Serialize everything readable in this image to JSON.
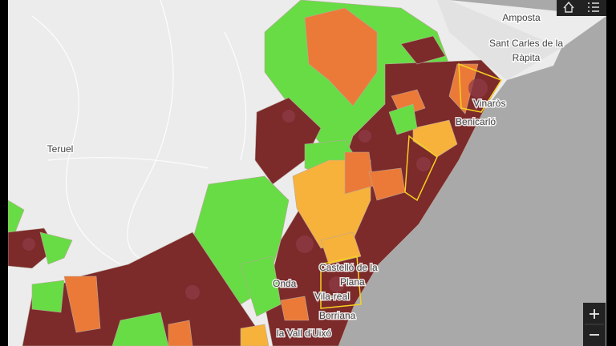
{
  "map": {
    "labels": [
      {
        "text": "Amposta"
      },
      {
        "text": "Sant Carles de la"
      },
      {
        "text": "Ràpita"
      },
      {
        "text": "Teruel"
      },
      {
        "text": "Vinaròs"
      },
      {
        "text": "Benicarló"
      },
      {
        "text": "Castelló de la"
      },
      {
        "text": "Plana"
      },
      {
        "text": "Onda"
      },
      {
        "text": "Vila-real"
      },
      {
        "text": "Borriana"
      },
      {
        "text": "la Vall d'Uixó"
      }
    ]
  }
}
